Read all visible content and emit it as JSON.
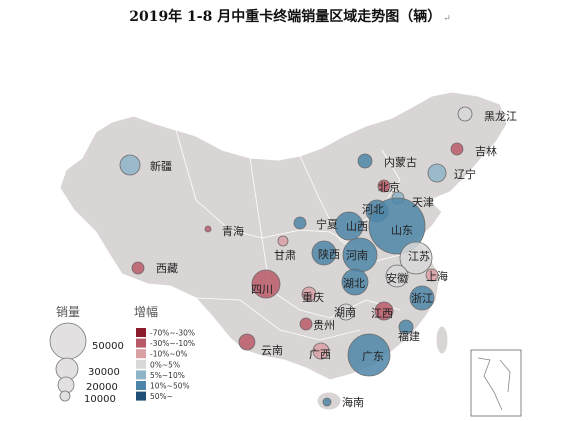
{
  "title": "2019年 1-8 月中重卡终端销量区域走势图（辆）",
  "title_mark": "↵",
  "legend": {
    "size_title": "销量",
    "color_title": "增幅",
    "sizes": [
      {
        "label": "50000",
        "value": 50000
      },
      {
        "label": "30000",
        "value": 30000
      },
      {
        "label": "20000",
        "value": 20000
      },
      {
        "label": "10000",
        "value": 10000
      }
    ],
    "growth_bins": [
      {
        "label": "-70%~-30%",
        "color": "#8b1a2b"
      },
      {
        "label": "-30%~-10%",
        "color": "#b95a68"
      },
      {
        "label": "-10%~0%",
        "color": "#d9a0a4"
      },
      {
        "label": "0%~5%",
        "color": "#d8d8d8"
      },
      {
        "label": "5%~10%",
        "color": "#8eb4c8"
      },
      {
        "label": "10%~50%",
        "color": "#4d86a8"
      },
      {
        "label": "50%~",
        "color": "#1e4f74"
      }
    ]
  },
  "provinces": [
    {
      "name": "黑龙江",
      "growth_bin": 3
    },
    {
      "name": "吉林",
      "growth_bin": 1
    },
    {
      "name": "辽宁",
      "growth_bin": 4
    },
    {
      "name": "内蒙古",
      "growth_bin": 5
    },
    {
      "name": "新疆",
      "growth_bin": 4
    },
    {
      "name": "北京",
      "growth_bin": 1
    },
    {
      "name": "天津",
      "growth_bin": 4
    },
    {
      "name": "河北",
      "growth_bin": 5
    },
    {
      "name": "山西",
      "growth_bin": 5
    },
    {
      "name": "山东",
      "growth_bin": 5
    },
    {
      "name": "宁夏",
      "growth_bin": 5
    },
    {
      "name": "青海",
      "growth_bin": 1
    },
    {
      "name": "甘肃",
      "growth_bin": 2
    },
    {
      "name": "陕西",
      "growth_bin": 5
    },
    {
      "name": "河南",
      "growth_bin": 5
    },
    {
      "name": "江苏",
      "growth_bin": 3
    },
    {
      "name": "安徽",
      "growth_bin": 3
    },
    {
      "name": "上海",
      "growth_bin": 2
    },
    {
      "name": "西藏",
      "growth_bin": 1
    },
    {
      "name": "四川",
      "growth_bin": 1
    },
    {
      "name": "湖北",
      "growth_bin": 5
    },
    {
      "name": "重庆",
      "growth_bin": 2
    },
    {
      "name": "浙江",
      "growth_bin": 5
    },
    {
      "name": "湖南",
      "growth_bin": 3
    },
    {
      "name": "江西",
      "growth_bin": 1
    },
    {
      "name": "贵州",
      "growth_bin": 1
    },
    {
      "name": "福建",
      "growth_bin": 5
    },
    {
      "name": "云南",
      "growth_bin": 1
    },
    {
      "name": "广西",
      "growth_bin": 2
    },
    {
      "name": "广东",
      "growth_bin": 5
    },
    {
      "name": "海南",
      "growth_bin": 5
    }
  ]
}
